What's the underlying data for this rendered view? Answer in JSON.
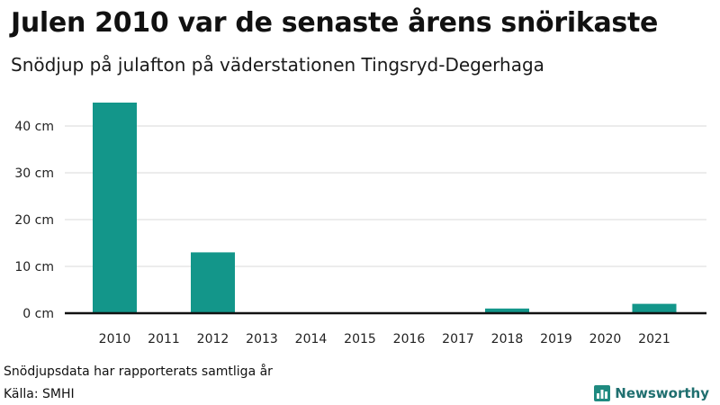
{
  "chart_data": {
    "type": "bar",
    "title": "Julen 2010 var de senaste årens snörikaste",
    "subtitle": "Snödjup på julafton på väderstationen Tingsryd-Degerhaga",
    "categories": [
      "2010",
      "2011",
      "2012",
      "2013",
      "2014",
      "2015",
      "2016",
      "2017",
      "2018",
      "2019",
      "2020",
      "2021"
    ],
    "values": [
      45,
      0,
      13,
      0,
      0,
      0,
      0,
      0,
      1,
      0,
      0,
      2
    ],
    "unit": "cm",
    "yticks": [
      0,
      10,
      20,
      30,
      40
    ],
    "ytick_labels": [
      "0 cm",
      "10 cm",
      "20 cm",
      "30 cm",
      "40 cm"
    ],
    "ylim": [
      0,
      45
    ],
    "grid": true,
    "bar_color": "#13968a"
  },
  "note": "Snödjupsdata har rapporterats samtliga år",
  "source": "Källa: SMHI",
  "brand": {
    "name": "Newsworthy",
    "icon": "bar-chart-icon",
    "color": "#1f6f6f"
  }
}
